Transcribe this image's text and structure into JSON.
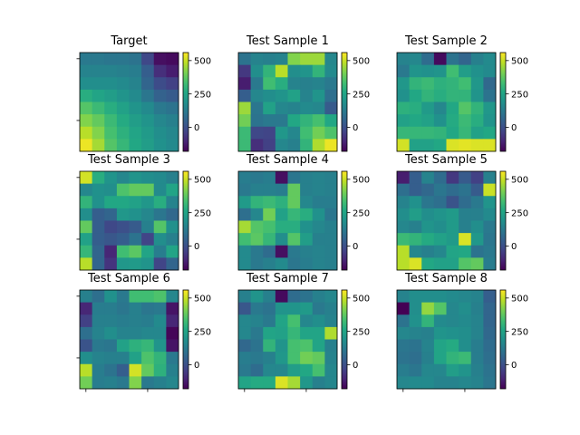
{
  "chart_data": [
    {
      "type": "heatmap",
      "title": "Target",
      "colorbar_ticks": [
        0,
        250,
        500
      ],
      "vmin": -180,
      "vmax": 560,
      "grid": [
        [
          120,
          120,
          110,
          110,
          100,
          -20,
          -150,
          -160
        ],
        [
          150,
          150,
          150,
          140,
          130,
          40,
          -80,
          -120
        ],
        [
          180,
          180,
          180,
          170,
          150,
          60,
          -10,
          -40
        ],
        [
          280,
          250,
          230,
          200,
          170,
          110,
          50,
          30
        ],
        [
          360,
          320,
          280,
          240,
          200,
          170,
          120,
          100
        ],
        [
          420,
          380,
          320,
          270,
          230,
          200,
          160,
          140
        ],
        [
          480,
          420,
          340,
          290,
          250,
          220,
          180,
          160
        ],
        [
          540,
          460,
          360,
          310,
          260,
          230,
          190,
          170
        ]
      ]
    },
    {
      "type": "heatmap",
      "title": "Test Sample 1",
      "colorbar_ticks": [
        0,
        250,
        500
      ],
      "vmin": -180,
      "vmax": 560,
      "grid": [
        [
          100,
          150,
          140,
          150,
          420,
          450,
          450,
          160
        ],
        [
          -60,
          180,
          300,
          480,
          180,
          200,
          300,
          170
        ],
        [
          -120,
          120,
          330,
          280,
          150,
          140,
          150,
          120
        ],
        [
          40,
          160,
          180,
          200,
          240,
          150,
          200,
          90
        ],
        [
          450,
          110,
          240,
          160,
          150,
          170,
          160,
          30
        ],
        [
          400,
          100,
          120,
          120,
          260,
          300,
          340,
          260
        ],
        [
          320,
          -20,
          -30,
          210,
          160,
          330,
          400,
          350
        ],
        [
          320,
          -80,
          -40,
          160,
          140,
          300,
          470,
          540
        ]
      ]
    },
    {
      "type": "heatmap",
      "title": "Test Sample 2",
      "colorbar_ticks": [
        0,
        250,
        500
      ],
      "vmin": -180,
      "vmax": 560,
      "grid": [
        [
          150,
          160,
          80,
          -160,
          100,
          60,
          140,
          170
        ],
        [
          120,
          200,
          190,
          200,
          330,
          230,
          190,
          170
        ],
        [
          210,
          300,
          320,
          290,
          300,
          330,
          210,
          70
        ],
        [
          190,
          260,
          300,
          280,
          300,
          300,
          200,
          100
        ],
        [
          290,
          280,
          220,
          160,
          260,
          360,
          300,
          210
        ],
        [
          240,
          260,
          240,
          190,
          270,
          320,
          280,
          200
        ],
        [
          310,
          310,
          310,
          300,
          260,
          310,
          240,
          260
        ],
        [
          510,
          240,
          240,
          260,
          520,
          530,
          520,
          520
        ]
      ]
    },
    {
      "type": "heatmap",
      "title": "Test Sample 3",
      "colorbar_ticks": [
        0,
        250,
        500
      ],
      "vmin": -180,
      "vmax": 560,
      "grid": [
        [
          510,
          280,
          200,
          160,
          200,
          180,
          170,
          140
        ],
        [
          160,
          190,
          180,
          350,
          380,
          380,
          170,
          250
        ],
        [
          300,
          190,
          260,
          260,
          240,
          210,
          280,
          150
        ],
        [
          180,
          40,
          60,
          210,
          190,
          160,
          110,
          70
        ],
        [
          380,
          40,
          -20,
          0,
          30,
          140,
          360,
          190
        ],
        [
          240,
          40,
          20,
          40,
          100,
          -30,
          180,
          140
        ],
        [
          310,
          60,
          -100,
          330,
          370,
          250,
          130,
          250
        ],
        [
          480,
          60,
          -70,
          210,
          220,
          200,
          -30,
          60
        ]
      ]
    },
    {
      "type": "heatmap",
      "title": "Test Sample 4",
      "colorbar_ticks": [
        0,
        250,
        500
      ],
      "vmin": -180,
      "vmax": 560,
      "grid": [
        [
          130,
          120,
          130,
          -150,
          110,
          140,
          150,
          140
        ],
        [
          120,
          140,
          140,
          130,
          380,
          140,
          150,
          140
        ],
        [
          220,
          300,
          320,
          290,
          380,
          160,
          130,
          130
        ],
        [
          90,
          160,
          400,
          240,
          310,
          280,
          190,
          110
        ],
        [
          460,
          360,
          340,
          280,
          280,
          190,
          160,
          140
        ],
        [
          330,
          370,
          310,
          180,
          360,
          230,
          140,
          140
        ],
        [
          170,
          120,
          80,
          -150,
          120,
          140,
          150,
          140
        ],
        [
          170,
          120,
          140,
          170,
          110,
          130,
          150,
          140
        ]
      ]
    },
    {
      "type": "heatmap",
      "title": "Test Sample 5",
      "colorbar_ticks": [
        0,
        250,
        500
      ],
      "vmin": -180,
      "vmax": 560,
      "grid": [
        [
          -120,
          40,
          150,
          80,
          -60,
          30,
          -40,
          140
        ],
        [
          90,
          40,
          70,
          110,
          80,
          100,
          30,
          500
        ],
        [
          150,
          190,
          110,
          90,
          10,
          80,
          120,
          200
        ],
        [
          180,
          230,
          180,
          200,
          220,
          140,
          140,
          170
        ],
        [
          160,
          140,
          200,
          180,
          220,
          140,
          180,
          120
        ],
        [
          320,
          300,
          270,
          240,
          220,
          520,
          210,
          110
        ],
        [
          480,
          160,
          140,
          160,
          250,
          260,
          100,
          120
        ],
        [
          480,
          520,
          260,
          240,
          240,
          360,
          380,
          130
        ]
      ]
    },
    {
      "type": "heatmap",
      "title": "Test Sample 6",
      "colorbar_ticks": [
        0,
        250,
        500
      ],
      "vmin": -180,
      "vmax": 560,
      "grid": [
        [
          140,
          90,
          190,
          120,
          330,
          330,
          350,
          160
        ],
        [
          -100,
          130,
          130,
          110,
          140,
          110,
          120,
          -140
        ],
        [
          -40,
          140,
          140,
          130,
          140,
          130,
          170,
          -100
        ],
        [
          90,
          150,
          180,
          150,
          150,
          160,
          160,
          -170
        ],
        [
          10,
          120,
          110,
          240,
          290,
          310,
          200,
          -140
        ],
        [
          180,
          150,
          140,
          140,
          240,
          350,
          300,
          120
        ],
        [
          480,
          130,
          100,
          40,
          510,
          380,
          290,
          140
        ],
        [
          400,
          130,
          140,
          120,
          420,
          120,
          140,
          160
        ]
      ]
    },
    {
      "type": "heatmap",
      "title": "Test Sample 7",
      "colorbar_ticks": [
        0,
        250,
        500
      ],
      "vmin": -180,
      "vmax": 560,
      "grid": [
        [
          140,
          200,
          140,
          -160,
          80,
          100,
          140,
          160
        ],
        [
          20,
          120,
          100,
          200,
          200,
          220,
          120,
          140
        ],
        [
          160,
          150,
          120,
          250,
          340,
          160,
          180,
          150
        ],
        [
          160,
          120,
          250,
          240,
          310,
          250,
          250,
          470
        ],
        [
          70,
          100,
          300,
          200,
          340,
          350,
          250,
          140
        ],
        [
          130,
          120,
          140,
          210,
          340,
          400,
          380,
          150
        ],
        [
          120,
          80,
          160,
          160,
          230,
          260,
          340,
          160
        ],
        [
          250,
          270,
          270,
          520,
          460,
          210,
          140,
          160
        ]
      ]
    },
    {
      "type": "heatmap",
      "title": "Test Sample 8",
      "colorbar_ticks": [
        0,
        250,
        500
      ],
      "vmin": -180,
      "vmax": 560,
      "grid": [
        [
          150,
          180,
          180,
          180,
          170,
          160,
          150,
          40
        ],
        [
          -180,
          180,
          440,
          360,
          160,
          180,
          140,
          60
        ],
        [
          100,
          190,
          300,
          170,
          160,
          170,
          150,
          60
        ],
        [
          160,
          150,
          140,
          200,
          190,
          180,
          150,
          70
        ],
        [
          110,
          100,
          150,
          250,
          270,
          180,
          130,
          80
        ],
        [
          100,
          90,
          140,
          250,
          300,
          320,
          130,
          90
        ],
        [
          130,
          110,
          160,
          160,
          230,
          200,
          140,
          100
        ],
        [
          160,
          170,
          170,
          150,
          150,
          160,
          150,
          110
        ]
      ]
    }
  ]
}
